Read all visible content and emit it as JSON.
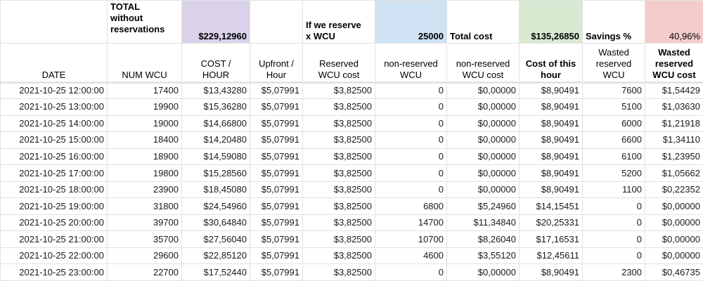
{
  "colors": {
    "purple_highlight": "#d9d2e9",
    "blue_highlight": "#cfe2f3",
    "green_highlight": "#d9ead3",
    "red_highlight": "#f4cccc",
    "gridline": "#e2e2e2"
  },
  "summary_row": {
    "total_label": "TOTAL\nwithout\nreservations",
    "total_value": "$229,12960",
    "reserve_label": "If we reserve\nx WCU",
    "reserve_wcu_value": "25000",
    "total_cost_label": "Total cost",
    "total_cost_value": "$135,26850",
    "savings_label": "Savings %",
    "savings_value": "40,96%"
  },
  "column_headers": [
    "DATE",
    "NUM WCU",
    "COST /\nHOUR",
    "Upfront /\nHour",
    "Reserved\nWCU cost",
    "non-reserved\nWCU",
    "non-reserved\nWCU cost",
    "Cost of this\nhour",
    "Wasted\nreserved\nWCU",
    "Wasted\nreserved\nWCU cost"
  ],
  "rows": [
    [
      "2021-10-25 12:00:00",
      "17400",
      "$13,43280",
      "$5,07991",
      "$3,82500",
      "0",
      "$0,00000",
      "$8,90491",
      "7600",
      "$1,54429"
    ],
    [
      "2021-10-25 13:00:00",
      "19900",
      "$15,36280",
      "$5,07991",
      "$3,82500",
      "0",
      "$0,00000",
      "$8,90491",
      "5100",
      "$1,03630"
    ],
    [
      "2021-10-25 14:00:00",
      "19000",
      "$14,66800",
      "$5,07991",
      "$3,82500",
      "0",
      "$0,00000",
      "$8,90491",
      "6000",
      "$1,21918"
    ],
    [
      "2021-10-25 15:00:00",
      "18400",
      "$14,20480",
      "$5,07991",
      "$3,82500",
      "0",
      "$0,00000",
      "$8,90491",
      "6600",
      "$1,34110"
    ],
    [
      "2021-10-25 16:00:00",
      "18900",
      "$14,59080",
      "$5,07991",
      "$3,82500",
      "0",
      "$0,00000",
      "$8,90491",
      "6100",
      "$1,23950"
    ],
    [
      "2021-10-25 17:00:00",
      "19800",
      "$15,28560",
      "$5,07991",
      "$3,82500",
      "0",
      "$0,00000",
      "$8,90491",
      "5200",
      "$1,05662"
    ],
    [
      "2021-10-25 18:00:00",
      "23900",
      "$18,45080",
      "$5,07991",
      "$3,82500",
      "0",
      "$0,00000",
      "$8,90491",
      "1100",
      "$0,22352"
    ],
    [
      "2021-10-25 19:00:00",
      "31800",
      "$24,54960",
      "$5,07991",
      "$3,82500",
      "6800",
      "$5,24960",
      "$14,15451",
      "0",
      "$0,00000"
    ],
    [
      "2021-10-25 20:00:00",
      "39700",
      "$30,64840",
      "$5,07991",
      "$3,82500",
      "14700",
      "$11,34840",
      "$20,25331",
      "0",
      "$0,00000"
    ],
    [
      "2021-10-25 21:00:00",
      "35700",
      "$27,56040",
      "$5,07991",
      "$3,82500",
      "10700",
      "$8,26040",
      "$17,16531",
      "0",
      "$0,00000"
    ],
    [
      "2021-10-25 22:00:00",
      "29600",
      "$22,85120",
      "$5,07991",
      "$3,82500",
      "4600",
      "$3,55120",
      "$12,45611",
      "0",
      "$0,00000"
    ],
    [
      "2021-10-25 23:00:00",
      "22700",
      "$17,52440",
      "$5,07991",
      "$3,82500",
      "0",
      "$0,00000",
      "$8,90491",
      "2300",
      "$0,46735"
    ]
  ]
}
